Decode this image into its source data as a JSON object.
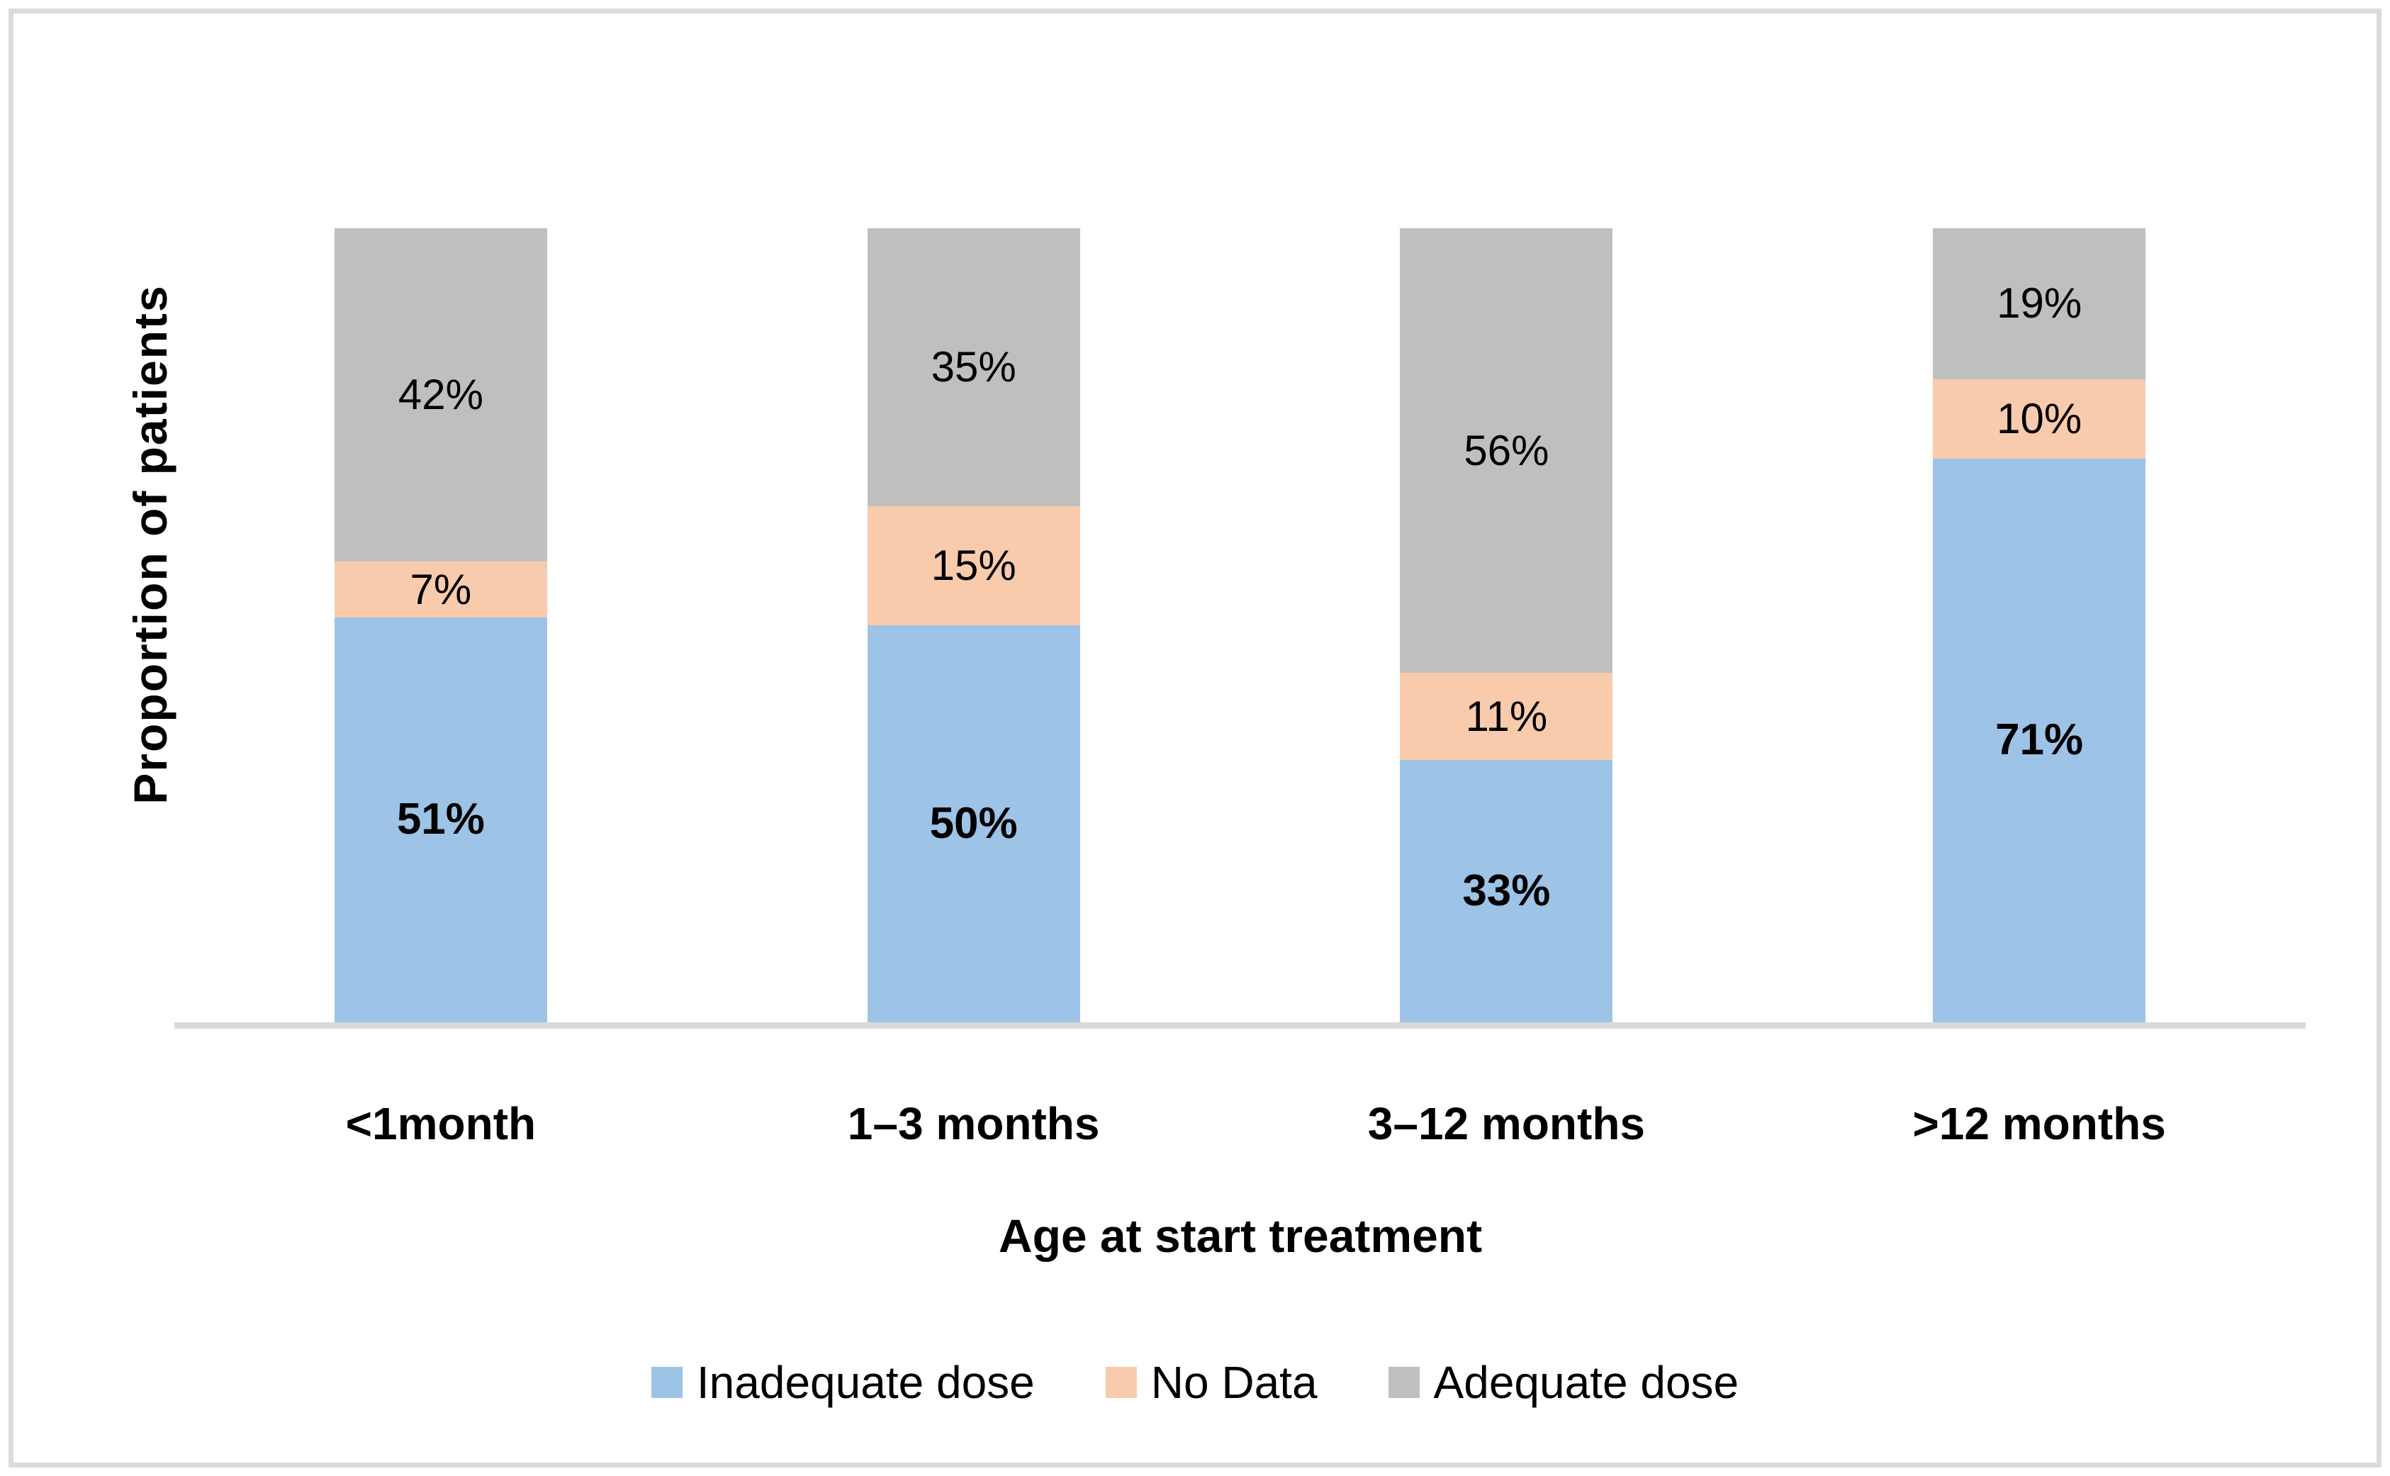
{
  "figure": {
    "y_axis_title": "Proportion of patients",
    "x_axis_title": "Age at start treatment"
  },
  "chart_data": {
    "type": "bar",
    "stacked": true,
    "orientation": "vertical",
    "unit": "%",
    "title": "",
    "xlabel": "Age at start treatment",
    "ylabel": "Proportion of patients",
    "categories": [
      "<1month",
      "1–3 months",
      "3–12 months",
      ">12 months"
    ],
    "series": [
      {
        "name": "Inadequate dose",
        "color": "#9DC3E6",
        "values": [
          51,
          50,
          33,
          71
        ],
        "label_bold": true
      },
      {
        "name": "No Data",
        "color": "#F8CBAD",
        "values": [
          7,
          15,
          11,
          10
        ],
        "label_bold": false
      },
      {
        "name": "Adequate dose",
        "color": "#BFBFBF",
        "values": [
          42,
          35,
          56,
          19
        ],
        "label_bold": false
      }
    ],
    "ylim": [
      0,
      100
    ],
    "grid": false,
    "y_ticks_visible": false,
    "legend_position": "bottom",
    "axis_line_color": "#D9D9D9",
    "label_color": "#000000"
  }
}
